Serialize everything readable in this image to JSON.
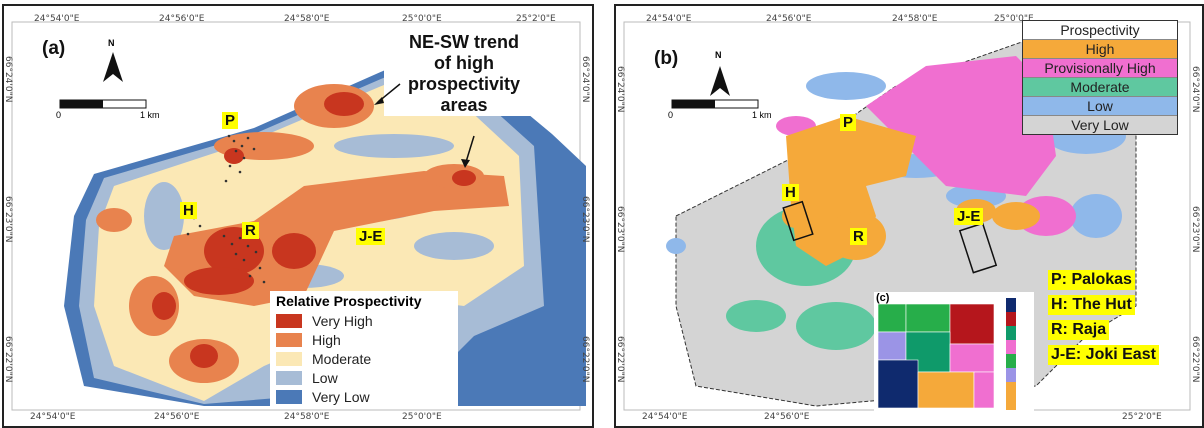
{
  "panel_a": {
    "label": "(a)",
    "trend_text": [
      "NE-SW trend",
      "of high",
      "prospectivity",
      "areas"
    ],
    "north": "N",
    "scale": {
      "start": "0",
      "end": "1 km"
    },
    "top_coords": [
      "24°54'0\"E",
      "24°56'0\"E",
      "24°58'0\"E",
      "25°0'0\"E",
      "25°2'0\"E"
    ],
    "bottom_coords": [
      "24°54'0\"E",
      "24°56'0\"E",
      "24°58'0\"E",
      "25°0'0\"E"
    ],
    "left_coords": [
      "66°24'0\"N",
      "66°23'0\"N",
      "66°22'0\"N"
    ],
    "right_coords": [
      "66°24'0\"N",
      "66°23'0\"N",
      "66°22'0\"N"
    ],
    "sites": {
      "p": "P",
      "h": "H",
      "r": "R",
      "je": "J-E"
    },
    "legend": {
      "title": "Relative Prospectivity",
      "items": [
        {
          "label": "Very High",
          "color": "#c8361f"
        },
        {
          "label": "High",
          "color": "#e8834e"
        },
        {
          "label": "Moderate",
          "color": "#fbe8b5"
        },
        {
          "label": "Low",
          "color": "#a7bcd6"
        },
        {
          "label": "Very Low",
          "color": "#4b79b7"
        }
      ]
    }
  },
  "panel_b": {
    "label": "(b)",
    "sub_label": "(c)",
    "north": "N",
    "scale": {
      "start": "0",
      "end": "1 km"
    },
    "top_coords": [
      "24°54'0\"E",
      "24°56'0\"E",
      "24°58'0\"E",
      "25°0'0\"E"
    ],
    "bottom_coords": [
      "24°54'0\"E",
      "24°56'0\"E",
      "25°2'0\"E"
    ],
    "left_coords": [
      "66°24'0\"N",
      "66°23'0\"N",
      "66°22'0\"N"
    ],
    "right_coords": [
      "66°24'0\"N",
      "66°23'0\"N",
      "66°22'0\"N"
    ],
    "sites": {
      "p": "P",
      "h": "H",
      "r": "R",
      "je": "J-E"
    },
    "legend": {
      "title": "Prospectivity",
      "items": [
        {
          "label": "High",
          "color": "#f5a93a"
        },
        {
          "label": "Provisionally High",
          "color": "#f06fd0"
        },
        {
          "label": "Moderate",
          "color": "#5fc8a0"
        },
        {
          "label": "Low",
          "color": "#8fb8ea"
        },
        {
          "label": "Very Low",
          "color": "#d4d4d4"
        }
      ]
    },
    "site_list": [
      "P: Palokas",
      "H: The Hut",
      "R: Raja",
      "J-E: Joki East"
    ]
  }
}
